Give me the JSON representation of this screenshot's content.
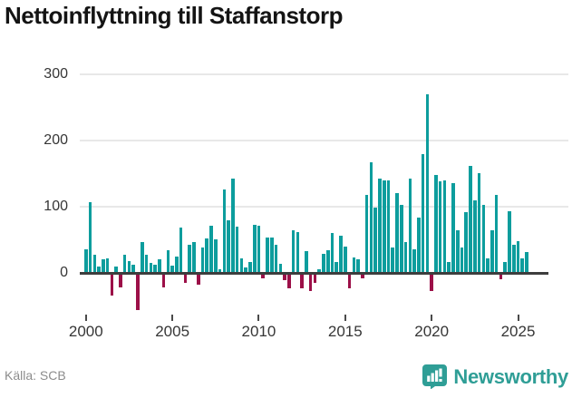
{
  "title": "Nettoinflyttning till Staffanstorp",
  "footer": {
    "source": "Källa: SCB",
    "brand": "Newsworthy"
  },
  "colors": {
    "positive_bar": "#0d9d9d",
    "negative_bar": "#9c1048",
    "brand_teal": "#2f9e96",
    "axis": "#3d3d3d",
    "gridline": "#e8e8e8",
    "tick_text": "#363636",
    "source_text": "#8c8c8c"
  },
  "icons": {
    "logo_badge": "bar-chart-speech-bubble-icon"
  },
  "chart_data": {
    "type": "bar",
    "title": "Nettoinflyttning till Staffanstorp",
    "frequency": "quarterly",
    "start_year": 2000,
    "start_quarter": 1,
    "values": [
      36,
      107,
      28,
      10,
      21,
      22,
      -31,
      10,
      -19,
      27,
      18,
      13,
      -53,
      47,
      28,
      15,
      13,
      20,
      -19,
      34,
      11,
      25,
      68,
      -13,
      42,
      47,
      -15,
      39,
      52,
      71,
      50,
      5,
      126,
      79,
      142,
      70,
      22,
      8,
      16,
      72,
      71,
      -5,
      54,
      53,
      42,
      14,
      -8,
      -21,
      64,
      62,
      -21,
      33,
      -25,
      -13,
      5,
      29,
      34,
      60,
      16,
      56,
      40,
      -20,
      23,
      21,
      -5,
      118,
      167,
      98,
      142,
      139,
      139,
      38,
      120,
      103,
      47,
      143,
      36,
      84,
      179,
      270,
      -24,
      148,
      138,
      139,
      17,
      136,
      64,
      38,
      92,
      161,
      110,
      150,
      103,
      22,
      65,
      118,
      -7,
      16,
      93,
      42,
      48,
      22,
      31
    ],
    "x_tick_labels": [
      "2000",
      "2005",
      "2010",
      "2015",
      "2020",
      "2025"
    ],
    "y_tick_labels": [
      "0",
      "100",
      "200",
      "300"
    ],
    "y_ticks": [
      0,
      100,
      200,
      300
    ],
    "ylim": [
      -70,
      315
    ],
    "grid": "horizontal",
    "legend": "none",
    "bar_color_positive": "#0d9d9d",
    "bar_color_negative": "#9c1048"
  }
}
